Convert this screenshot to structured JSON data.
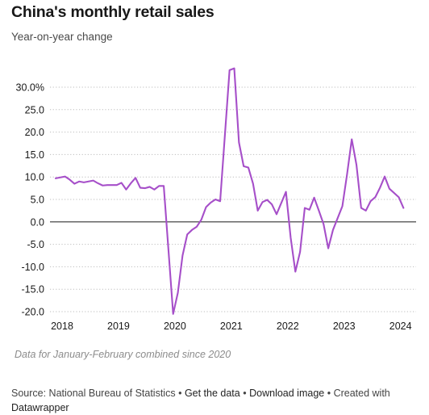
{
  "title": "China's monthly retail sales",
  "subtitle": "Year-on-year change",
  "note": "Data for January-February combined since 2020",
  "footer": {
    "source_prefix": "Source: National Bureau of Statistics",
    "get_data": "Get the data",
    "download": "Download image",
    "created_with": "Created with",
    "tool": "Datawrapper",
    "separator": "•"
  },
  "colors": {
    "line": "#a64fc9",
    "zero_line": "#333333",
    "grid": "#bdbdbd",
    "text": "#181818"
  },
  "chart_data": {
    "type": "line",
    "title": "China's monthly retail sales",
    "subtitle": "Year-on-year change",
    "xlabel": "",
    "ylabel": "",
    "ylim": [
      -20,
      30
    ],
    "xlim": [
      "2018-01",
      "2024-05"
    ],
    "grid": "horizontal dotted",
    "y_ticks": [
      {
        "value": 30,
        "label": "30.0%"
      },
      {
        "value": 25,
        "label": "25.0"
      },
      {
        "value": 20,
        "label": "20.0"
      },
      {
        "value": 15,
        "label": "15.0"
      },
      {
        "value": 10,
        "label": "10.0"
      },
      {
        "value": 5,
        "label": "5.0"
      },
      {
        "value": 0,
        "label": "0.0"
      },
      {
        "value": -5,
        "label": "-5.0"
      },
      {
        "value": -10,
        "label": "-10.0"
      },
      {
        "value": -15,
        "label": "-15.0"
      },
      {
        "value": -20,
        "label": "-20.0"
      }
    ],
    "x_ticks": [
      {
        "value": "2018-01",
        "label": "2018"
      },
      {
        "value": "2019-01",
        "label": "2019"
      },
      {
        "value": "2020-01",
        "label": "2020"
      },
      {
        "value": "2021-01",
        "label": "2021"
      },
      {
        "value": "2022-01",
        "label": "2022"
      },
      {
        "value": "2023-01",
        "label": "2023"
      },
      {
        "value": "2024-01",
        "label": "2024"
      }
    ],
    "series": [
      {
        "points": [
          {
            "x": "2018-01",
            "y": 9.7
          },
          {
            "x": "2018-03",
            "y": 10.1
          },
          {
            "x": "2018-04",
            "y": 9.4
          },
          {
            "x": "2018-05",
            "y": 8.5
          },
          {
            "x": "2018-06",
            "y": 9.0
          },
          {
            "x": "2018-07",
            "y": 8.8
          },
          {
            "x": "2018-08",
            "y": 9.0
          },
          {
            "x": "2018-09",
            "y": 9.2
          },
          {
            "x": "2018-10",
            "y": 8.6
          },
          {
            "x": "2018-11",
            "y": 8.1
          },
          {
            "x": "2018-12",
            "y": 8.2
          },
          {
            "x": "2019-02",
            "y": 8.2
          },
          {
            "x": "2019-03",
            "y": 8.7
          },
          {
            "x": "2019-04",
            "y": 7.2
          },
          {
            "x": "2019-05",
            "y": 8.6
          },
          {
            "x": "2019-06",
            "y": 9.8
          },
          {
            "x": "2019-07",
            "y": 7.6
          },
          {
            "x": "2019-08",
            "y": 7.5
          },
          {
            "x": "2019-09",
            "y": 7.8
          },
          {
            "x": "2019-10",
            "y": 7.2
          },
          {
            "x": "2019-11",
            "y": 8.0
          },
          {
            "x": "2019-12",
            "y": 8.0
          },
          {
            "x": "2020-02",
            "y": -20.5
          },
          {
            "x": "2020-03",
            "y": -15.8
          },
          {
            "x": "2020-04",
            "y": -7.5
          },
          {
            "x": "2020-05",
            "y": -2.8
          },
          {
            "x": "2020-06",
            "y": -1.8
          },
          {
            "x": "2020-07",
            "y": -1.1
          },
          {
            "x": "2020-08",
            "y": 0.5
          },
          {
            "x": "2020-09",
            "y": 3.3
          },
          {
            "x": "2020-10",
            "y": 4.3
          },
          {
            "x": "2020-11",
            "y": 5.0
          },
          {
            "x": "2020-12",
            "y": 4.6
          },
          {
            "x": "2021-02",
            "y": 33.8
          },
          {
            "x": "2021-03",
            "y": 34.2
          },
          {
            "x": "2021-04",
            "y": 17.7
          },
          {
            "x": "2021-05",
            "y": 12.4
          },
          {
            "x": "2021-06",
            "y": 12.1
          },
          {
            "x": "2021-07",
            "y": 8.5
          },
          {
            "x": "2021-08",
            "y": 2.5
          },
          {
            "x": "2021-09",
            "y": 4.4
          },
          {
            "x": "2021-10",
            "y": 4.9
          },
          {
            "x": "2021-11",
            "y": 3.9
          },
          {
            "x": "2021-12",
            "y": 1.7
          },
          {
            "x": "2022-02",
            "y": 6.7
          },
          {
            "x": "2022-03",
            "y": -3.5
          },
          {
            "x": "2022-04",
            "y": -11.1
          },
          {
            "x": "2022-05",
            "y": -6.7
          },
          {
            "x": "2022-06",
            "y": 3.1
          },
          {
            "x": "2022-07",
            "y": 2.7
          },
          {
            "x": "2022-08",
            "y": 5.4
          },
          {
            "x": "2022-09",
            "y": 2.5
          },
          {
            "x": "2022-10",
            "y": -0.5
          },
          {
            "x": "2022-11",
            "y": -5.9
          },
          {
            "x": "2022-12",
            "y": -1.8
          },
          {
            "x": "2023-02",
            "y": 3.5
          },
          {
            "x": "2023-03",
            "y": 10.6
          },
          {
            "x": "2023-04",
            "y": 18.4
          },
          {
            "x": "2023-05",
            "y": 12.7
          },
          {
            "x": "2023-06",
            "y": 3.1
          },
          {
            "x": "2023-07",
            "y": 2.5
          },
          {
            "x": "2023-08",
            "y": 4.6
          },
          {
            "x": "2023-09",
            "y": 5.5
          },
          {
            "x": "2023-10",
            "y": 7.6
          },
          {
            "x": "2023-11",
            "y": 10.1
          },
          {
            "x": "2023-12",
            "y": 7.4
          },
          {
            "x": "2024-02",
            "y": 5.5
          },
          {
            "x": "2024-03",
            "y": 3.1
          }
        ]
      }
    ]
  }
}
